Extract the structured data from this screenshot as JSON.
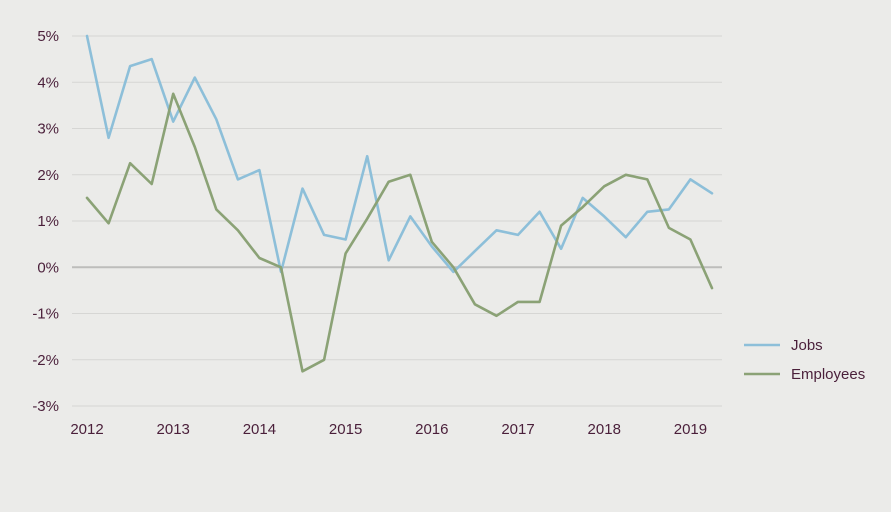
{
  "chart_data": {
    "type": "line",
    "title": "",
    "xlabel": "",
    "ylabel": "",
    "x_ticks": [
      "2012",
      "2013",
      "2014",
      "2015",
      "2016",
      "2017",
      "2018",
      "2019"
    ],
    "y_ticks": [
      "5%",
      "4%",
      "3%",
      "2%",
      "1%",
      "0%",
      "-1%",
      "-2%",
      "-3%"
    ],
    "ylim": [
      -3,
      5
    ],
    "xlim": [
      2012,
      2019.25
    ],
    "grid": true,
    "legend_position": "right",
    "series": [
      {
        "name": "Jobs",
        "color": "#8dbfd9",
        "x": [
          2012,
          2012.25,
          2012.5,
          2012.75,
          2013,
          2013.25,
          2013.5,
          2013.75,
          2014,
          2014.25,
          2014.5,
          2014.75,
          2015,
          2015.25,
          2015.5,
          2015.75,
          2016,
          2016.25,
          2016.5,
          2016.75,
          2017,
          2017.25,
          2017.5,
          2017.75,
          2018,
          2018.25,
          2018.5,
          2018.75,
          2019,
          2019.25
        ],
        "values": [
          5.0,
          2.8,
          4.35,
          4.5,
          3.15,
          4.1,
          3.2,
          1.9,
          2.1,
          -0.1,
          1.7,
          0.7,
          0.6,
          2.4,
          0.15,
          1.1,
          0.45,
          -0.1,
          0.35,
          0.8,
          0.7,
          1.2,
          0.4,
          1.5,
          1.1,
          0.65,
          1.2,
          1.25,
          1.9,
          1.6
        ]
      },
      {
        "name": "Employees",
        "color": "#8ba276",
        "x": [
          2012,
          2012.25,
          2012.5,
          2012.75,
          2013,
          2013.25,
          2013.5,
          2013.75,
          2014,
          2014.25,
          2014.5,
          2014.75,
          2015,
          2015.25,
          2015.5,
          2015.75,
          2016,
          2016.25,
          2016.5,
          2016.75,
          2017,
          2017.25,
          2017.5,
          2017.75,
          2018,
          2018.25,
          2018.5,
          2018.75,
          2019,
          2019.25
        ],
        "values": [
          1.5,
          0.95,
          2.25,
          1.8,
          3.75,
          2.6,
          1.25,
          0.8,
          0.2,
          0.0,
          -2.25,
          -2.0,
          0.3,
          1.05,
          1.85,
          2.0,
          0.55,
          0.0,
          -0.8,
          -1.05,
          -0.75,
          -0.75,
          0.9,
          1.3,
          1.75,
          2.0,
          1.9,
          0.85,
          0.6,
          -0.45
        ]
      }
    ]
  }
}
